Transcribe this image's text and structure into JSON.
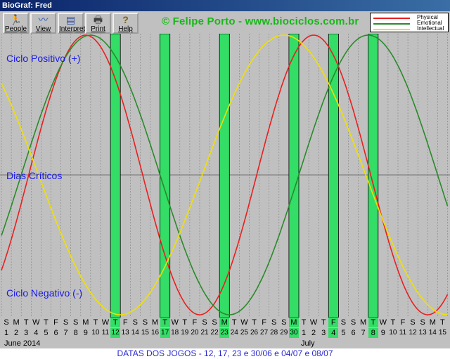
{
  "window": {
    "title": "BioGraf: Fred"
  },
  "toolbar": {
    "buttons": [
      {
        "label": "People",
        "icon": "people-icon",
        "glyph": "🏃"
      },
      {
        "label": "View",
        "icon": "view-icon",
        "glyph": "〰"
      },
      {
        "label": "Interpret",
        "icon": "interpret-icon",
        "glyph": "▤"
      },
      {
        "label": "Print",
        "icon": "printer-icon",
        "glyph": "🖶"
      },
      {
        "label": "Help",
        "icon": "help-icon",
        "glyph": "?"
      }
    ]
  },
  "watermark": "© Felipe Porto - www.biociclos.com.br",
  "legend": [
    {
      "name": "Physical",
      "color": "#e82020"
    },
    {
      "name": "Emotional",
      "color": "#2a8a2a"
    },
    {
      "name": "Intellectual",
      "color": "#f0e000"
    }
  ],
  "chart_labels": {
    "positive": "Ciclo Positivo (+)",
    "critical": "Dias Críticos",
    "negative": "Ciclo Negativo (-)"
  },
  "colors": {
    "highlight": "#33dd66",
    "grid": "#808080",
    "background": "#c0c0c0"
  },
  "chart_data": {
    "type": "line",
    "x": [
      "1 Jun",
      "2 Jun",
      "3 Jun",
      "4 Jun",
      "5 Jun",
      "6 Jun",
      "7 Jun",
      "8 Jun",
      "9 Jun",
      "10 Jun",
      "11 Jun",
      "12 Jun",
      "13 Jun",
      "14 Jun",
      "15 Jun",
      "16 Jun",
      "17 Jun",
      "18 Jun",
      "19 Jun",
      "20 Jun",
      "21 Jun",
      "22 Jun",
      "23 Jun",
      "24 Jun",
      "25 Jun",
      "26 Jun",
      "27 Jun",
      "28 Jun",
      "29 Jun",
      "30 Jun",
      "1 Jul",
      "2 Jul",
      "3 Jul",
      "4 Jul",
      "5 Jul",
      "6 Jul",
      "7 Jul",
      "8 Jul",
      "9 Jul",
      "10 Jul",
      "11 Jul",
      "12 Jul",
      "13 Jul",
      "14 Jul",
      "15 Jul"
    ],
    "series": [
      {
        "name": "Physical",
        "period": 23,
        "peak_day_index": 8
      },
      {
        "name": "Emotional",
        "period": 28,
        "peak_day_index": 8.5
      },
      {
        "name": "Intellectual",
        "period": 33,
        "peak_day_index": 28
      }
    ],
    "ylim": [
      -1,
      1
    ],
    "highlight_days": [
      12,
      17,
      23,
      30,
      4,
      8
    ],
    "highlight_day_indices": [
      11,
      16,
      22,
      29,
      33,
      37
    ]
  },
  "days": {
    "weekdays": [
      "S",
      "M",
      "T",
      "W",
      "T",
      "F",
      "S",
      "S",
      "M",
      "T",
      "W",
      "T",
      "F",
      "S",
      "S",
      "M",
      "T",
      "W",
      "T",
      "F",
      "S",
      "S",
      "M",
      "T",
      "W",
      "T",
      "F",
      "S",
      "S",
      "M",
      "T",
      "W",
      "T",
      "F",
      "S",
      "S",
      "M",
      "T",
      "W",
      "T",
      "F",
      "S",
      "S",
      "M",
      "T"
    ],
    "numbers": [
      "1",
      "2",
      "3",
      "4",
      "5",
      "6",
      "7",
      "8",
      "9",
      "10",
      "11",
      "12",
      "13",
      "14",
      "15",
      "16",
      "17",
      "18",
      "19",
      "20",
      "21",
      "22",
      "23",
      "24",
      "25",
      "26",
      "27",
      "28",
      "29",
      "30",
      "1",
      "2",
      "3",
      "4",
      "5",
      "6",
      "7",
      "8",
      "9",
      "10",
      "11",
      "12",
      "13",
      "14",
      "15"
    ]
  },
  "months": {
    "first": "June 2014",
    "second": "July"
  },
  "footer": "DATAS DOS JOGOS - 12, 17, 23 e 30/06 e 04/07 e 08/07"
}
